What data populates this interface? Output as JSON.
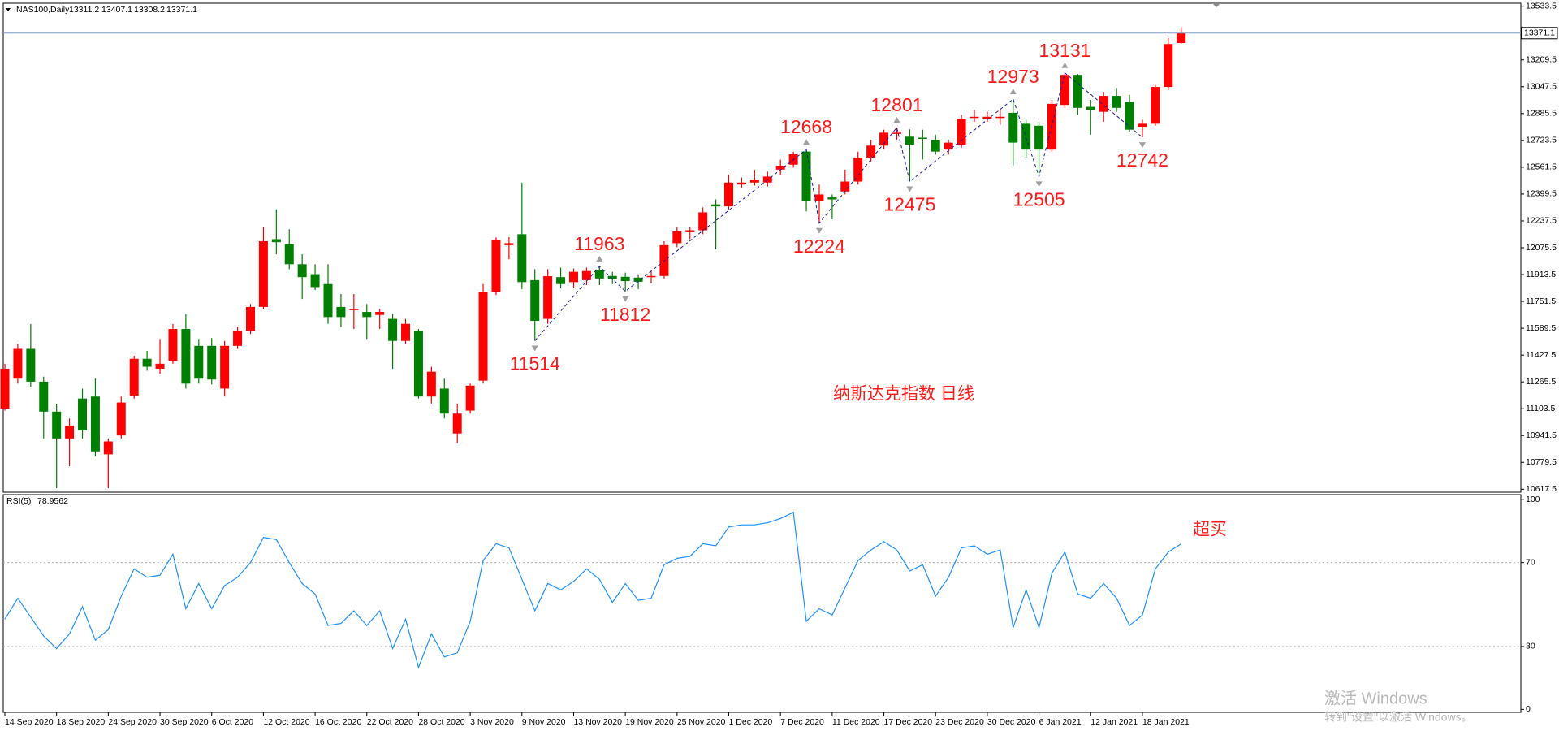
{
  "chart_data": [
    {
      "type": "candlestick",
      "symbol": "NAS100,Daily",
      "categories": [
        "14 Sep 2020",
        null,
        null,
        null,
        "18 Sep 2020",
        null,
        null,
        null,
        "24 Sep 2020",
        null,
        null,
        null,
        "30 Sep 2020",
        null,
        null,
        null,
        "6 Oct 2020",
        null,
        null,
        null,
        "12 Oct 2020",
        null,
        null,
        null,
        "16 Oct 2020",
        null,
        null,
        null,
        "22 Oct 2020",
        null,
        null,
        null,
        "28 Oct 2020",
        null,
        null,
        null,
        "3 Nov 2020",
        null,
        null,
        null,
        "9 Nov 2020",
        null,
        null,
        null,
        "13 Nov 2020",
        null,
        null,
        null,
        "19 Nov 2020",
        null,
        null,
        null,
        "25 Nov 2020",
        null,
        null,
        null,
        "1 Dec 2020",
        null,
        null,
        null,
        "7 Dec 2020",
        null,
        null,
        null,
        "11 Dec 2020",
        null,
        null,
        null,
        "17 Dec 2020",
        null,
        null,
        null,
        "23 Dec 2020",
        null,
        null,
        null,
        "30 Dec 2020",
        null,
        null,
        null,
        "6 Jan 2021",
        null,
        null,
        null,
        "12 Jan 2021",
        null,
        null,
        null,
        "18 Jan 2021",
        null,
        null,
        null
      ],
      "open": [
        11104,
        11285,
        11465,
        11267,
        11086,
        10924,
        11165,
        11177,
        10828,
        10942,
        11183,
        11405,
        11345,
        11393,
        11585,
        11483,
        11483,
        11225,
        11483,
        11573,
        11718,
        12127,
        12097,
        11976,
        11916,
        11856,
        11718,
        11700,
        11688,
        11670,
        11646,
        11513,
        11573,
        11177,
        11225,
        10954,
        11092,
        11273,
        11808,
        12091,
        12157,
        11880,
        11646,
        11898,
        11868,
        11880,
        11940,
        11905,
        11900,
        11895,
        11900,
        11905,
        12103,
        12169,
        12181,
        12337,
        12325,
        12457,
        12469,
        12469,
        12547,
        12577,
        12656,
        12355,
        12379,
        12415,
        12475,
        12620,
        12692,
        12764,
        12746,
        12740,
        12728,
        12668,
        12698,
        12860,
        12854,
        12860,
        12890,
        12824,
        12812,
        12668,
        12938,
        13119,
        12926,
        12896,
        12992,
        12956,
        12806,
        12824,
        13046,
        13311.2
      ],
      "high": [
        11375,
        11495,
        11615,
        11297,
        11134,
        11044,
        11225,
        11285,
        10924,
        11177,
        11423,
        11453,
        11525,
        11615,
        11675,
        11525,
        11530,
        11513,
        11597,
        11736,
        12198,
        12307,
        12187,
        12036,
        11976,
        11976,
        11796,
        11796,
        11736,
        11706,
        11676,
        11646,
        11585,
        11357,
        11285,
        11134,
        11255,
        11856,
        12138,
        12139,
        12469,
        11946,
        11946,
        11955,
        11950,
        11955,
        11963,
        11930,
        11925,
        11915,
        11935,
        12115,
        12199,
        12199,
        12319,
        12367,
        12517,
        12499,
        12547,
        12535,
        12607,
        12655,
        12668,
        12457,
        12397,
        12547,
        12655,
        12728,
        12788,
        12801,
        12790,
        12788,
        12758,
        12728,
        12878,
        12908,
        12896,
        12908,
        12973,
        12848,
        12836,
        12968,
        13131,
        13125,
        12968,
        13016,
        13040,
        12998,
        12848,
        13058,
        13341,
        13407.1
      ],
      "low": [
        11092,
        11255,
        11237,
        10924,
        10624,
        10756,
        10924,
        10816,
        10624,
        10924,
        11165,
        11333,
        11315,
        11375,
        11225,
        11255,
        11250,
        11177,
        11465,
        11555,
        11706,
        12036,
        11946,
        11766,
        11820,
        11616,
        11597,
        11585,
        11525,
        11585,
        11345,
        11495,
        11165,
        11135,
        11044,
        10894,
        11074,
        11255,
        11790,
        12006,
        11826,
        11514,
        11616,
        11830,
        11830,
        11850,
        11850,
        11856,
        11812,
        11826,
        11860,
        11890,
        12079,
        12127,
        12157,
        12066,
        12307,
        12439,
        12451,
        12445,
        12517,
        12559,
        12295,
        12224,
        12247,
        12397,
        12457,
        12596,
        12668,
        12728,
        12475,
        12608,
        12638,
        12638,
        12680,
        12836,
        12836,
        12818,
        12572,
        12620,
        12505,
        12656,
        12920,
        12878,
        12758,
        12836,
        12896,
        12776,
        12742,
        12812,
        13028,
        13308.2
      ],
      "close": [
        11345,
        11465,
        11267,
        11086,
        10924,
        11002,
        10972,
        10846,
        10906,
        11141,
        11405,
        11357,
        11375,
        11585,
        11255,
        11285,
        11280,
        11483,
        11573,
        11718,
        12115,
        12109,
        11976,
        11898,
        11838,
        11657,
        11657,
        11706,
        11657,
        11688,
        11513,
        11616,
        11177,
        11327,
        11074,
        11074,
        11243,
        11808,
        12121,
        12103,
        11868,
        11634,
        11904,
        11856,
        11930,
        11935,
        11890,
        11886,
        11874,
        11870,
        11905,
        12091,
        12175,
        12181,
        12289,
        12325,
        12469,
        12469,
        12487,
        12505,
        12571,
        12640,
        12355,
        12397,
        12367,
        12475,
        12620,
        12692,
        12770,
        12770,
        12698,
        12734,
        12656,
        12710,
        12854,
        12866,
        12866,
        12866,
        12710,
        12668,
        12668,
        12944,
        13119,
        12920,
        12908,
        12992,
        12920,
        12788,
        12824,
        13046,
        13305,
        13371.1
      ],
      "up_color": "#ff0000",
      "down_color": "#008000",
      "ylim": [
        10599.5,
        13551.5
      ],
      "yticks": [
        10617.5,
        10779.5,
        10941.5,
        11103.5,
        11265.5,
        11427.5,
        11589.5,
        11751.5,
        11913.5,
        12075.5,
        12237.5,
        12399.5,
        12561.5,
        12723.5,
        12885.5,
        13047.5,
        13209.5,
        13533.5
      ],
      "pivot_labels": [
        11514,
        11963,
        11812,
        12668,
        12224,
        12801,
        12475,
        12973,
        12505,
        13131,
        12742
      ],
      "pivot_color": "#ff0000",
      "zigzag_color": "#1a1aa0",
      "price_line_color": "#7f9cc2",
      "annotation": "纳斯达克指数 日线"
    },
    {
      "type": "line",
      "title": "RSI(5)",
      "values": [
        43,
        53,
        44,
        35,
        29,
        36,
        49,
        33,
        38,
        54,
        67,
        63,
        64,
        74,
        48,
        60,
        48,
        59,
        63,
        70,
        82,
        81,
        70,
        60,
        55,
        40,
        41,
        47,
        40,
        47,
        29,
        43,
        20,
        36,
        25,
        27,
        42,
        71,
        79,
        77,
        62,
        47,
        60,
        57,
        61,
        67,
        62,
        51,
        60,
        52,
        53,
        69,
        72,
        73,
        79,
        78,
        87,
        88,
        88,
        89,
        91,
        94,
        42,
        48,
        45,
        58,
        71,
        76,
        80,
        76,
        66,
        69,
        54,
        63,
        77,
        78,
        74,
        76,
        39,
        57,
        39,
        65,
        75,
        55,
        53,
        60,
        53,
        40,
        45,
        67,
        75,
        78.9562
      ],
      "color": "#1e90ff",
      "ylim": [
        -1.4,
        102.4
      ],
      "yticks": [
        0,
        30,
        70,
        100
      ],
      "levels": [
        30,
        70
      ],
      "level_color": "#b0b0b0",
      "annotation": "超买"
    }
  ],
  "watermark": {
    "line1": "激活 Windows",
    "line2": "转到\"设置\"以激活 Windows。"
  }
}
